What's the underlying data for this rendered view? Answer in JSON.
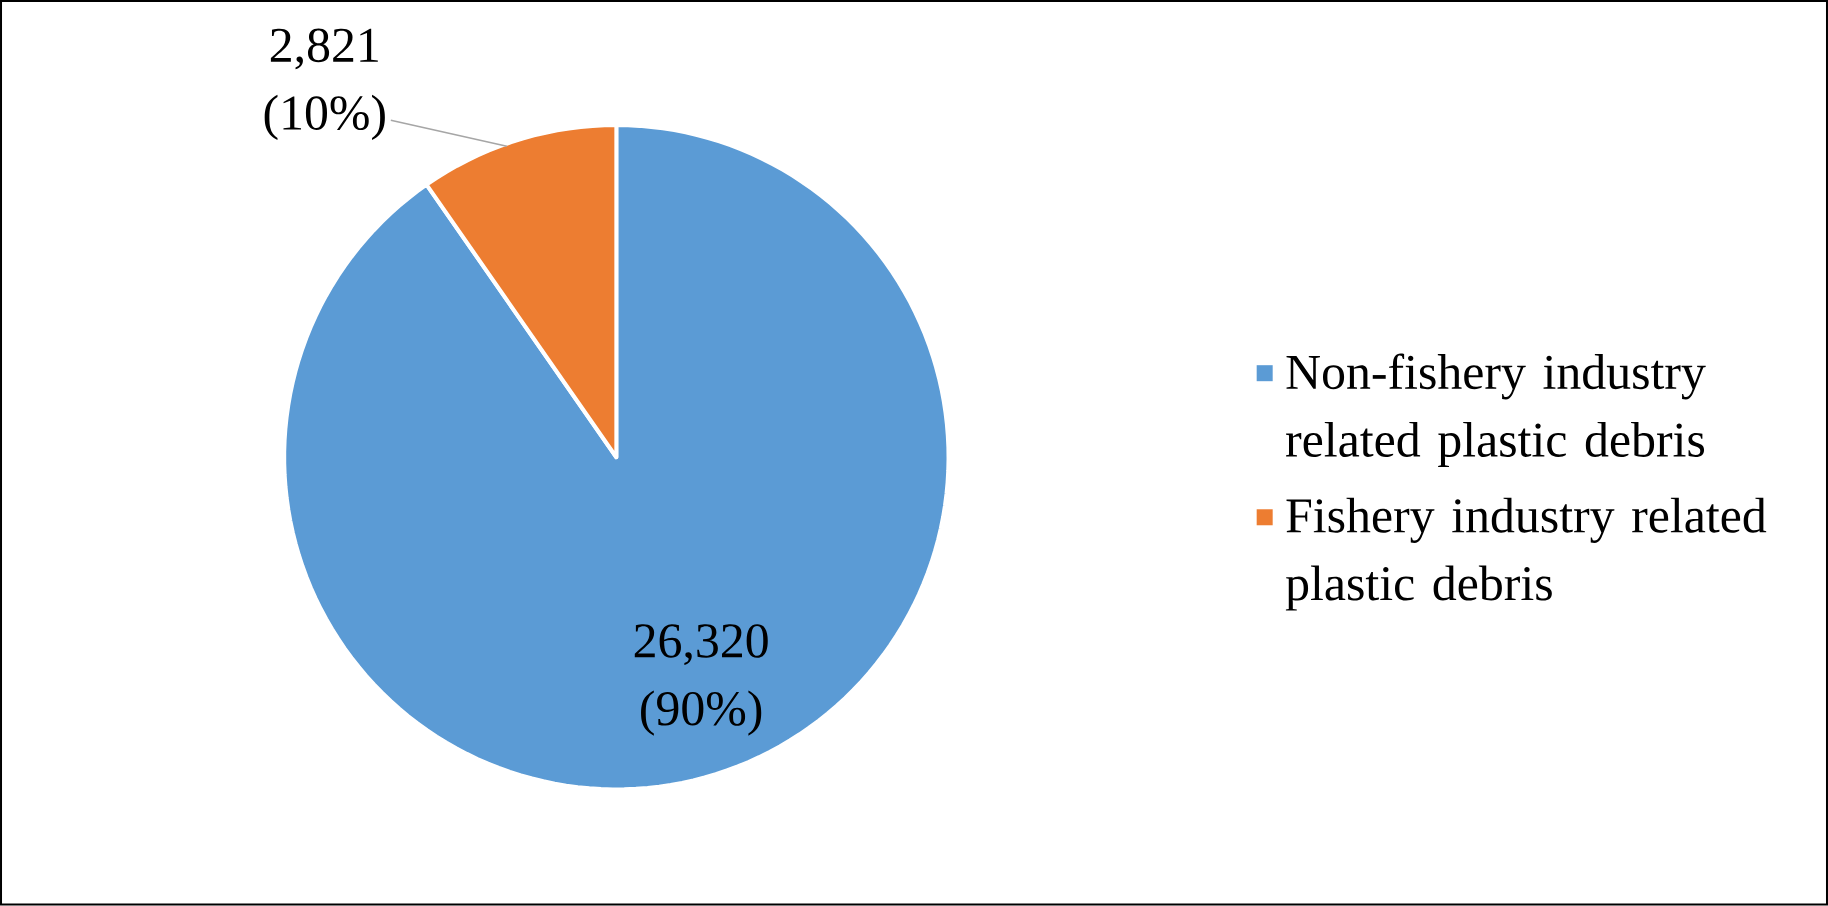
{
  "chart_data": {
    "type": "pie",
    "categories": [
      "Non-fishery industry related plastic debris",
      "Fishery industry related plastic debris"
    ],
    "values": [
      26320,
      2821
    ],
    "colors": [
      "#5b9bd5",
      "#ed7d31"
    ],
    "value_labels": [
      "26,320 (90%)",
      "2,821 (10%)"
    ],
    "legend": "right"
  }
}
